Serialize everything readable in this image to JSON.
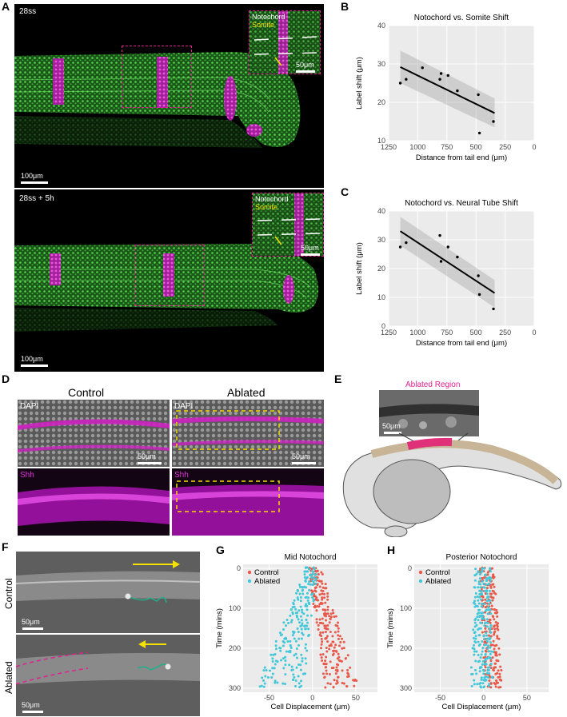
{
  "panels": {
    "A": "A",
    "B": "B",
    "C": "C",
    "D": "D",
    "E": "E",
    "F": "F",
    "G": "G",
    "H": "H"
  },
  "panel_a": {
    "top_label": "28ss",
    "bottom_label": "28ss + 5h",
    "scale_main": "100μm",
    "scale_inset": "50μm",
    "inset_line1": "Notochord",
    "inset_line2": "Somite",
    "colors": {
      "green": "#3ec93a",
      "magenta": "#e030d8",
      "roi": "#e0208f",
      "yellow": "#f5e100"
    }
  },
  "panel_d": {
    "col_control": "Control",
    "col_ablated": "Ablated",
    "stain_dapi": "DAPI",
    "stain_shh": "Shh",
    "scale": "50μm"
  },
  "panel_e": {
    "ablated_label": "Ablated Region",
    "scale": "50μm"
  },
  "panel_f": {
    "label_control": "Control",
    "label_ablated": "Ablated",
    "scale": "50μm"
  },
  "chart_data": [
    {
      "id": "B",
      "type": "scatter",
      "title": "Notochord vs. Somite Shift",
      "xlabel": "Distance from tail end (μm)",
      "ylabel": "Label shift (μm)",
      "xlim": [
        1250,
        0
      ],
      "ylim": [
        10,
        40
      ],
      "xticks": [
        1250,
        1000,
        750,
        500,
        250,
        0
      ],
      "yticks": [
        10,
        20,
        30,
        40
      ],
      "points": [
        [
          1150,
          25
        ],
        [
          1100,
          26
        ],
        [
          960,
          29
        ],
        [
          810,
          26
        ],
        [
          800,
          27.5
        ],
        [
          740,
          27
        ],
        [
          660,
          23
        ],
        [
          480,
          22
        ],
        [
          470,
          12
        ],
        [
          350,
          15
        ]
      ],
      "fit": {
        "x": [
          1150,
          340
        ],
        "y": [
          29.2,
          17.2
        ],
        "ci_upper": [
          33.5,
          21
        ],
        "ci_lower": [
          25,
          13.5
        ]
      }
    },
    {
      "id": "C",
      "type": "scatter",
      "title": "Notochord vs. Neural Tube Shift",
      "xlabel": "Distance from tail end (μm)",
      "ylabel": "Label shift (μm)",
      "xlim": [
        1250,
        0
      ],
      "ylim": [
        0,
        40
      ],
      "xticks": [
        1250,
        1000,
        750,
        500,
        250,
        0
      ],
      "yticks": [
        0,
        10,
        20,
        30,
        40
      ],
      "points": [
        [
          1150,
          27.5
        ],
        [
          1100,
          29
        ],
        [
          810,
          31.5
        ],
        [
          800,
          22.5
        ],
        [
          740,
          27.5
        ],
        [
          660,
          24
        ],
        [
          480,
          17.5
        ],
        [
          470,
          11
        ],
        [
          350,
          6
        ]
      ],
      "fit": {
        "x": [
          1150,
          340
        ],
        "y": [
          33,
          11.5
        ],
        "ci_upper": [
          38,
          16
        ],
        "ci_lower": [
          28,
          6.5
        ]
      }
    },
    {
      "id": "G",
      "type": "scatter",
      "title": "Mid Notochord",
      "xlabel": "Cell Displacement (μm)",
      "ylabel": "Time (mins)",
      "xlim": [
        -80,
        75
      ],
      "ylim": [
        310,
        -10
      ],
      "xticks": [
        -50,
        0,
        50
      ],
      "yticks": [
        0,
        100,
        200,
        300
      ],
      "series": [
        {
          "name": "Control",
          "color": "#e8594a",
          "spread_start": [
            -5,
            10
          ],
          "spread_end": [
            15,
            55
          ]
        },
        {
          "name": "Ablated",
          "color": "#42c8d8",
          "spread_start": [
            -8,
            6
          ],
          "spread_end": [
            -65,
            -10
          ]
        }
      ]
    },
    {
      "id": "H",
      "type": "scatter",
      "title": "Posterior Notochord",
      "xlabel": "Cell Displacement (μm)",
      "ylabel": "Time (mins)",
      "xlim": [
        -80,
        75
      ],
      "ylim": [
        310,
        -10
      ],
      "xticks": [
        -50,
        0,
        50
      ],
      "yticks": [
        0,
        100,
        200,
        300
      ],
      "series": [
        {
          "name": "Control",
          "color": "#e8594a",
          "spread_start": [
            -6,
            12
          ],
          "spread_end": [
            2,
            22
          ]
        },
        {
          "name": "Ablated",
          "color": "#42c8d8",
          "spread_start": [
            -10,
            8
          ],
          "spread_end": [
            -15,
            12
          ]
        }
      ]
    }
  ]
}
